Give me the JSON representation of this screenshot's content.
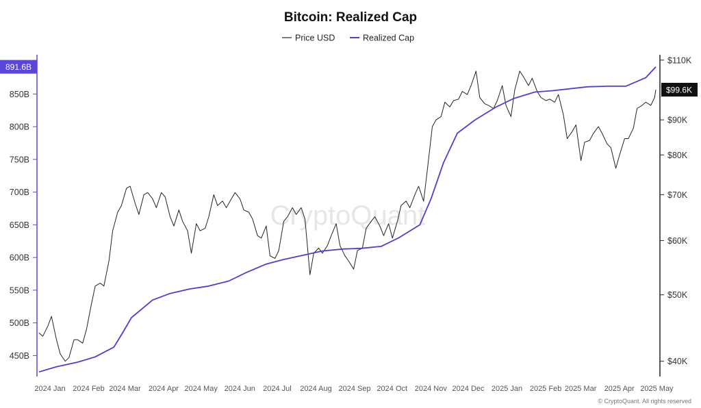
{
  "chart_data": {
    "type": "line",
    "title": "Bitcoin: Realized Cap",
    "legend": {
      "placement": "top-center",
      "entries": [
        "Price USD",
        "Realized Cap"
      ]
    },
    "x_ticks": [
      "2024 Jan",
      "2024 Feb",
      "2024 Mar",
      "2024 Apr",
      "2024 May",
      "2024 Jun",
      "2024 Jul",
      "2024 Aug",
      "2024 Sep",
      "2024 Oct",
      "2024 Nov",
      "2024 Dec",
      "2025 Jan",
      "2025 Feb",
      "2025 Mar",
      "2025 Apr",
      "2025 May"
    ],
    "left_axis": {
      "ticks": [
        450,
        500,
        550,
        600,
        650,
        700,
        750,
        800,
        850
      ],
      "tick_labels": [
        "450B",
        "500B",
        "550B",
        "600B",
        "650B",
        "700B",
        "750B",
        "800B",
        "850B"
      ],
      "range": [
        418,
        910
      ]
    },
    "right_axis": {
      "scale": "log",
      "ticks": [
        40000,
        50000,
        60000,
        70000,
        80000,
        90000,
        110000
      ],
      "tick_labels": [
        "$40K",
        "$50K",
        "$60K",
        "$70K",
        "$80K",
        "$90K",
        "$110K"
      ],
      "range": [
        38000,
        112000
      ]
    },
    "grid": "off",
    "colors": {
      "price": "#222222",
      "realized_cap": "#4b3fd1",
      "accent": "#5b46dd"
    },
    "current_values": {
      "realized_cap_label": "891.6B",
      "price_label": "$99.6K"
    },
    "series": [
      {
        "name": "Price USD",
        "axis": "right",
        "x": [
          "2024-01-01",
          "2024-01-04",
          "2024-01-08",
          "2024-01-11",
          "2024-01-15",
          "2024-01-18",
          "2024-01-22",
          "2024-01-25",
          "2024-01-29",
          "2024-02-01",
          "2024-02-05",
          "2024-02-08",
          "2024-02-12",
          "2024-02-15",
          "2024-02-19",
          "2024-02-22",
          "2024-02-26",
          "2024-02-29",
          "2024-03-04",
          "2024-03-07",
          "2024-03-11",
          "2024-03-14",
          "2024-03-18",
          "2024-03-21",
          "2024-03-25",
          "2024-03-28",
          "2024-04-01",
          "2024-04-04",
          "2024-04-08",
          "2024-04-11",
          "2024-04-15",
          "2024-04-18",
          "2024-04-22",
          "2024-04-25",
          "2024-04-29",
          "2024-05-02",
          "2024-05-06",
          "2024-05-09",
          "2024-05-13",
          "2024-05-16",
          "2024-05-20",
          "2024-05-23",
          "2024-05-27",
          "2024-05-30",
          "2024-06-03",
          "2024-06-06",
          "2024-06-10",
          "2024-06-13",
          "2024-06-17",
          "2024-06-20",
          "2024-06-24",
          "2024-06-27",
          "2024-07-01",
          "2024-07-04",
          "2024-07-08",
          "2024-07-11",
          "2024-07-15",
          "2024-07-18",
          "2024-07-22",
          "2024-07-25",
          "2024-07-29",
          "2024-08-01",
          "2024-08-05",
          "2024-08-08",
          "2024-08-12",
          "2024-08-15",
          "2024-08-19",
          "2024-08-22",
          "2024-08-26",
          "2024-08-29",
          "2024-09-02",
          "2024-09-05",
          "2024-09-09",
          "2024-09-12",
          "2024-09-16",
          "2024-09-19",
          "2024-09-23",
          "2024-09-26",
          "2024-09-30",
          "2024-10-03",
          "2024-10-07",
          "2024-10-10",
          "2024-10-14",
          "2024-10-17",
          "2024-10-21",
          "2024-10-24",
          "2024-10-28",
          "2024-10-31",
          "2024-11-04",
          "2024-11-07",
          "2024-11-11",
          "2024-11-14",
          "2024-11-18",
          "2024-11-21",
          "2024-11-25",
          "2024-11-28",
          "2024-12-02",
          "2024-12-05",
          "2024-12-09",
          "2024-12-12",
          "2024-12-16",
          "2024-12-19",
          "2024-12-23",
          "2024-12-26",
          "2024-12-30",
          "2025-01-02",
          "2025-01-06",
          "2025-01-09",
          "2025-01-13",
          "2025-01-16",
          "2025-01-20",
          "2025-01-23",
          "2025-01-27",
          "2025-01-30",
          "2025-02-03",
          "2025-02-06",
          "2025-02-10",
          "2025-02-13",
          "2025-02-17",
          "2025-02-20",
          "2025-02-24",
          "2025-02-27",
          "2025-03-03",
          "2025-03-06",
          "2025-03-10",
          "2025-03-13",
          "2025-03-17",
          "2025-03-20",
          "2025-03-24",
          "2025-03-27",
          "2025-03-31",
          "2025-04-03",
          "2025-04-07",
          "2025-04-10",
          "2025-04-14",
          "2025-04-17",
          "2025-04-21",
          "2025-04-24",
          "2025-04-28",
          "2025-05-01",
          "2025-05-05",
          "2025-05-08",
          "2025-05-09"
        ],
        "values": [
          44000,
          43500,
          45000,
          46500,
          43000,
          41000,
          40000,
          40500,
          43000,
          43000,
          42500,
          44500,
          48500,
          51500,
          52000,
          51500,
          56000,
          62000,
          66000,
          67500,
          71500,
          72000,
          68000,
          65500,
          70000,
          70500,
          69000,
          67000,
          70500,
          69500,
          65000,
          63000,
          66500,
          64000,
          62000,
          57500,
          63500,
          62000,
          62500,
          65000,
          70000,
          67500,
          68500,
          67000,
          69000,
          70500,
          69000,
          66500,
          66000,
          64500,
          61000,
          60500,
          63000,
          57000,
          56500,
          58000,
          64000,
          65000,
          67000,
          65500,
          67000,
          64500,
          53500,
          57500,
          58500,
          57500,
          59000,
          61000,
          63500,
          59000,
          57000,
          56000,
          54500,
          58000,
          58500,
          62500,
          64000,
          65000,
          63000,
          61000,
          63500,
          60500,
          64000,
          67500,
          68500,
          67000,
          70000,
          72000,
          68500,
          76000,
          88000,
          90000,
          91000,
          95500,
          94000,
          96000,
          96500,
          99000,
          98000,
          101000,
          106000,
          97000,
          95000,
          94500,
          93500,
          96000,
          101000,
          94500,
          91000,
          99500,
          106000,
          104000,
          101000,
          103500,
          99000,
          97000,
          96000,
          96500,
          95500,
          98000,
          91500,
          84500,
          86500,
          88500,
          78500,
          83500,
          84000,
          86000,
          88000,
          86000,
          83000,
          82000,
          76500,
          80000,
          84500,
          84500,
          87500,
          93500,
          94500,
          95500,
          94500,
          97000,
          99600
        ]
      },
      {
        "name": "Realized Cap",
        "axis": "left",
        "x": [
          "2024-01-01",
          "2024-01-15",
          "2024-02-01",
          "2024-02-15",
          "2024-03-01",
          "2024-03-08",
          "2024-03-15",
          "2024-04-01",
          "2024-04-15",
          "2024-05-01",
          "2024-05-15",
          "2024-06-01",
          "2024-06-15",
          "2024-07-01",
          "2024-07-15",
          "2024-08-01",
          "2024-08-15",
          "2024-09-01",
          "2024-09-15",
          "2024-10-01",
          "2024-10-15",
          "2024-11-01",
          "2024-11-10",
          "2024-11-20",
          "2024-12-01",
          "2024-12-15",
          "2025-01-01",
          "2025-01-15",
          "2025-02-01",
          "2025-02-15",
          "2025-03-01",
          "2025-03-15",
          "2025-04-01",
          "2025-04-15",
          "2025-05-01",
          "2025-05-09"
        ],
        "values": [
          425,
          433,
          440,
          448,
          463,
          485,
          508,
          535,
          545,
          552,
          556,
          564,
          577,
          590,
          597,
          604,
          610,
          613,
          614,
          617,
          630,
          650,
          690,
          745,
          790,
          810,
          830,
          843,
          853,
          855,
          858,
          861,
          862,
          862,
          875,
          891.6
        ]
      }
    ]
  },
  "watermark": "CryptoQuant",
  "footer": "© CryptoQuant. All rights reserved"
}
